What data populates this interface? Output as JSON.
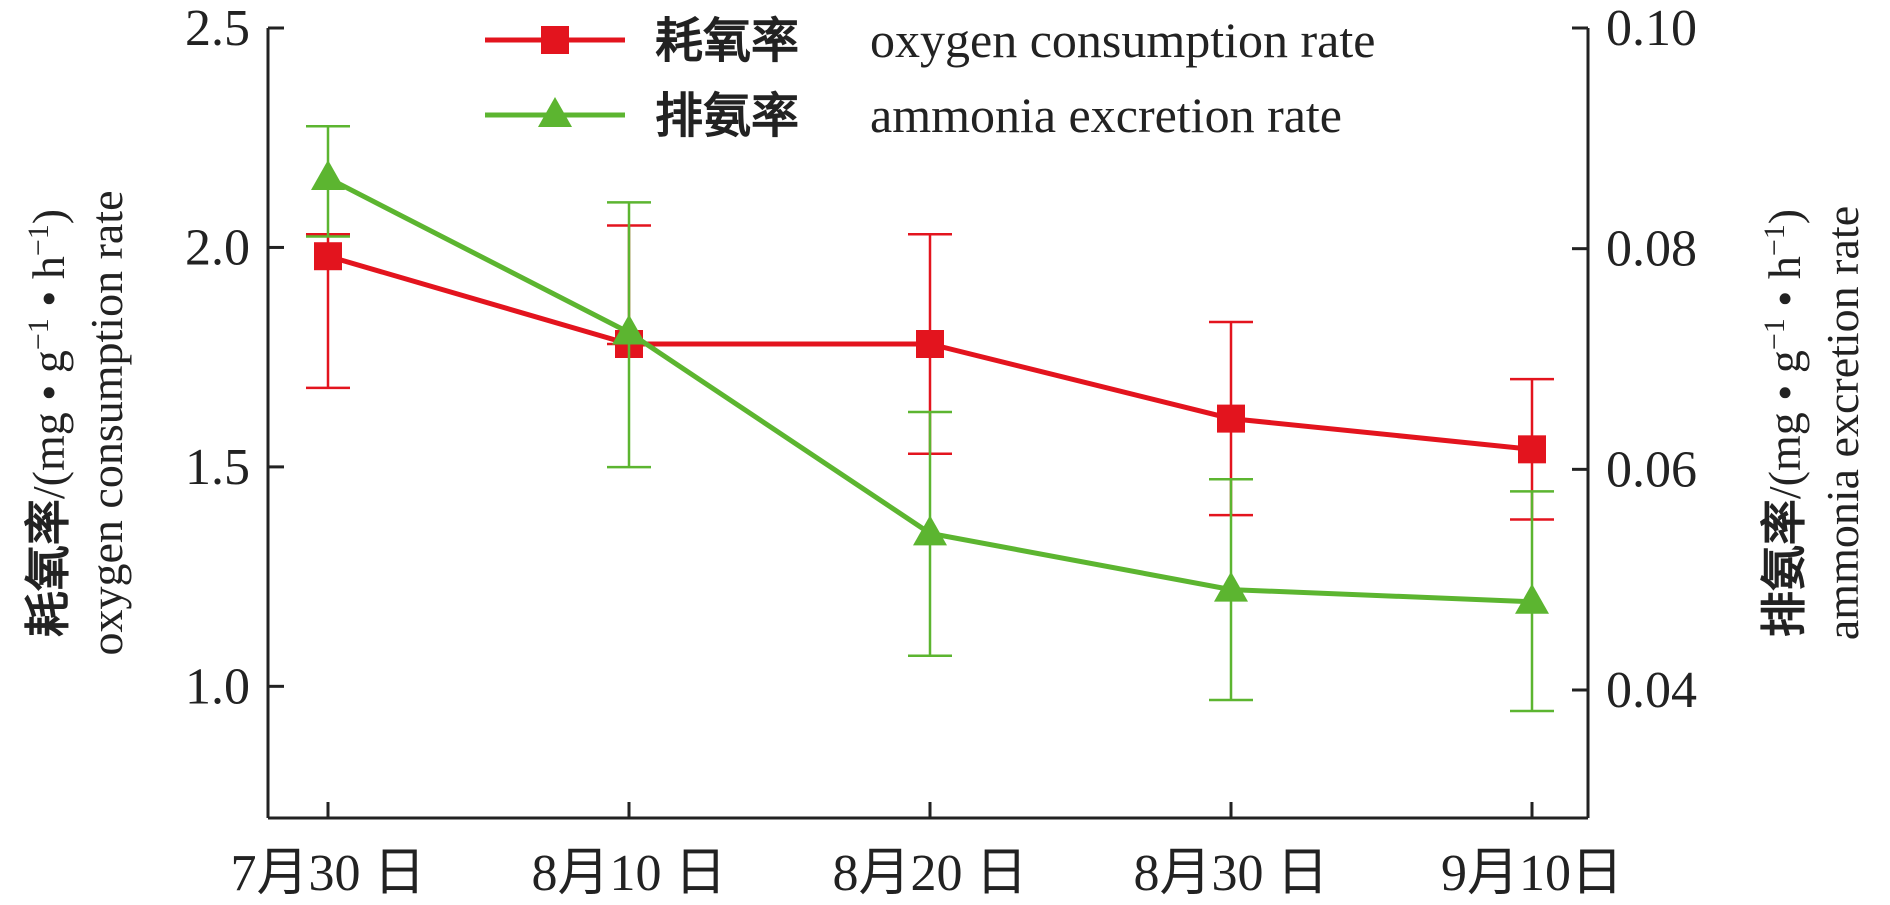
{
  "chart_data": {
    "type": "line",
    "categories": [
      "7月30 日",
      "8月10 日",
      "8月20 日",
      "8月30 日",
      "9月10日"
    ],
    "left_axis": {
      "label_cn": "耗氧率",
      "label_en": "oxygen consumption rate",
      "label_unit_prefix": "/(mg • g",
      "label_unit_mid": " • h",
      "label_unit_suffix": ")",
      "label_unit_exp": "−1",
      "ylim": [
        0.7,
        2.5
      ],
      "ticks": [
        1.0,
        1.5,
        2.0,
        2.5
      ],
      "tick_labels": [
        "1.0",
        "1.5",
        "2.0",
        "2.5"
      ]
    },
    "right_axis": {
      "label_cn": "排氨率",
      "label_en": "ammonia excretion rate",
      "label_unit_prefix": "/(mg • g",
      "label_unit_mid": " • h",
      "label_unit_suffix": ")",
      "label_unit_exp": "−1",
      "ylim": [
        0.0284,
        0.1
      ],
      "ticks": [
        0.04,
        0.06,
        0.08,
        0.1
      ],
      "tick_labels": [
        "0.04",
        "0.06",
        "0.08",
        "0.10"
      ]
    },
    "series": [
      {
        "name_cn": "耗氧率",
        "name_en": "oxygen consumption rate",
        "axis": "left",
        "marker": "square",
        "color": "#e3141e",
        "values": [
          1.98,
          1.78,
          1.78,
          1.61,
          1.54
        ],
        "err_low": [
          1.68,
          1.78,
          1.53,
          1.39,
          1.38
        ],
        "err_high": [
          2.03,
          2.05,
          2.03,
          1.83,
          1.7
        ]
      },
      {
        "name_cn": "排氨率",
        "name_en": "ammonia excretion rate",
        "axis": "right",
        "marker": "triangle",
        "color": "#5cb530",
        "values": [
          0.0864,
          0.0724,
          0.0542,
          0.0491,
          0.048
        ],
        "err_low": [
          0.0811,
          0.0602,
          0.0431,
          0.0391,
          0.0381
        ],
        "err_high": [
          0.0911,
          0.0842,
          0.0652,
          0.0591,
          0.058
        ]
      }
    ],
    "legend_position": "top-right",
    "grid": false
  }
}
